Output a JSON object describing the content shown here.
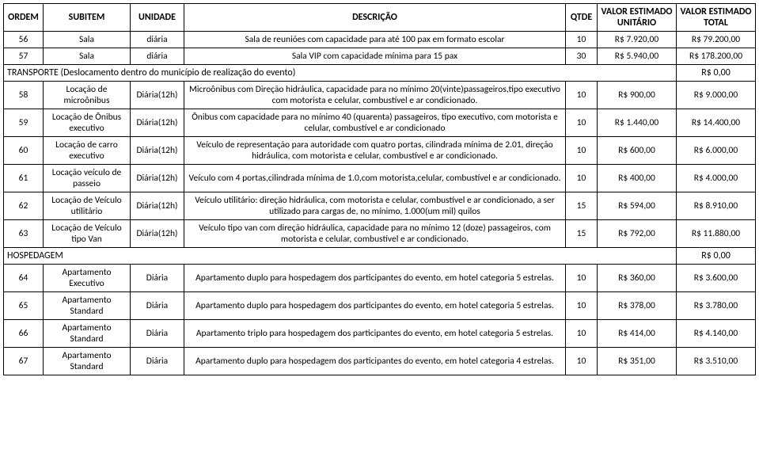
{
  "headers": {
    "ordem": "ORDEM",
    "subitem": "SUBITEM",
    "unidade": "UNIDADE",
    "descricao": "DESCRIÇÃO",
    "qtde": "QTDE",
    "valor_unit": "VALOR ESTIMADO UNITÁRIO",
    "valor_total": "VALOR ESTIMADO TOTAL"
  },
  "rows": [
    {
      "type": "data",
      "ordem": "56",
      "subitem": "Sala",
      "unidade": "diária",
      "descricao": "Sala de reuniões com capacidade para até 100 pax em formato escolar",
      "qtde": "10",
      "unit": "R$ 7.920,00",
      "total": "R$ 79.200,00"
    },
    {
      "type": "data",
      "ordem": "57",
      "subitem": "Sala",
      "unidade": "diária",
      "descricao": "Sala VIP com capacidade mínima para 15 pax",
      "qtde": "30",
      "unit": "R$ 5.940,00",
      "total": "R$ 178.200,00"
    },
    {
      "type": "section",
      "label": "TRANSPORTE (Deslocamento dentro do município de realização do evento)",
      "total": "R$ 0,00"
    },
    {
      "type": "data",
      "ordem": "58",
      "subitem": "Locação de microônibus",
      "unidade": "Diária(12h)",
      "descricao": "Microônibus com Direção hidráulica, capacidade para no mínimo 20(vinte)passageiros,tipo executivo com motorista e celular, combustível e ar condicionado.",
      "qtde": "10",
      "unit": "R$ 900,00",
      "total": "R$ 9.000,00"
    },
    {
      "type": "data",
      "ordem": "59",
      "subitem": "Locação de Ônibus executivo",
      "unidade": "Diária(12h)",
      "descricao": "Ônibus com capacidade para no mínimo 40 (quarenta) passageiros, tipo executivo, com motorista e celular, combustível e ar condicionado",
      "qtde": "10",
      "unit": "R$ 1.440,00",
      "total": "R$ 14.400,00"
    },
    {
      "type": "data",
      "ordem": "60",
      "subitem": "Locação de carro executivo",
      "unidade": "Diária(12h)",
      "descricao": "Veículo de representação para autoridade com quatro portas, cilindrada mínima de 2.01, direção hidráulica, com motorista e celular, combustível e ar condicionado.",
      "qtde": "10",
      "unit": "R$ 600,00",
      "total": "R$ 6.000,00"
    },
    {
      "type": "data",
      "ordem": "61",
      "subitem": "Locação veículo de passeio",
      "unidade": "Diária(12h)",
      "descricao": "Veículo com 4 portas,cilindrada mínima de 1.0,com motorista,celular, combustível e ar condicionado.",
      "qtde": "10",
      "unit": "R$ 400,00",
      "total": "R$ 4.000,00"
    },
    {
      "type": "data",
      "ordem": "62",
      "subitem": "Locação de Veículo utilitário",
      "unidade": "Diária(12h)",
      "descricao": "Veículo utilitário: direção hidráulica, com motorista e celular, combustível e ar condicionado, a ser utilizado para cargas de, no mínimo, 1.000(um mil) quilos",
      "qtde": "15",
      "unit": "R$ 594,00",
      "total": "R$ 8.910,00"
    },
    {
      "type": "data",
      "ordem": "63",
      "subitem": "Locação de Veículo tipo Van",
      "unidade": "Diária(12h)",
      "descricao": "Veículo tipo van com direção hidráulica, capacidade para no mínimo 12 (doze) passageiros, com motorista e celular, combustível e ar condicionado.",
      "qtde": "15",
      "unit": "R$ 792,00",
      "total": "R$ 11.880,00"
    },
    {
      "type": "section",
      "label": "HOSPEDAGEM",
      "total": "R$ 0,00"
    },
    {
      "type": "data",
      "ordem": "64",
      "subitem": "Apartamento Executivo",
      "unidade": "Diária",
      "descricao": "Apartamento duplo para hospedagem dos participantes do evento, em hotel categoria 5 estrelas.",
      "qtde": "10",
      "unit": "R$ 360,00",
      "total": "R$ 3.600,00"
    },
    {
      "type": "data",
      "ordem": "65",
      "subitem": "Apartamento Standard",
      "unidade": "Diária",
      "descricao": "Apartamento duplo para hospedagem dos participantes do evento, em hotel categoria 5 estrelas.",
      "qtde": "10",
      "unit": "R$ 378,00",
      "total": "R$ 3.780,00"
    },
    {
      "type": "data",
      "ordem": "66",
      "subitem": "Apartamento Standard",
      "unidade": "Diária",
      "descricao": "Apartamento triplo para hospedagem dos participantes do evento, em hotel categoria 5 estrelas.",
      "qtde": "10",
      "unit": "R$ 414,00",
      "total": "R$ 4.140,00"
    },
    {
      "type": "data",
      "ordem": "67",
      "subitem": "Apartamento Standard",
      "unidade": "Diária",
      "descricao": "Apartamento duplo para hospedagem dos participantes do evento, em hotel categoria 4 estrelas.",
      "qtde": "10",
      "unit": "R$ 351,00",
      "total": "R$ 3.510,00"
    }
  ]
}
